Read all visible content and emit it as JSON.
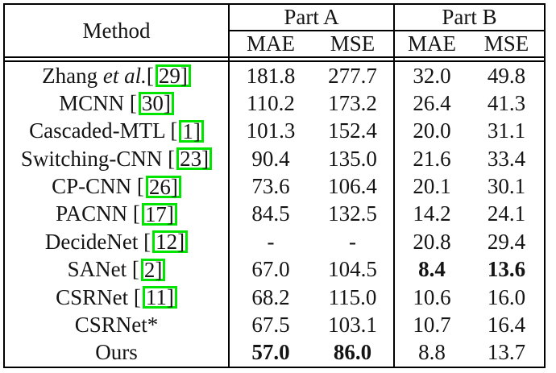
{
  "colors": {
    "background": "#ffffff",
    "text": "#141414",
    "border": "#000000",
    "citation_box": "#00e400"
  },
  "table": {
    "method_label": "Method",
    "groups": [
      {
        "label": "Part A"
      },
      {
        "label": "Part B"
      }
    ],
    "metrics": [
      "MAE",
      "MSE",
      "MAE",
      "MSE"
    ],
    "cite_open": "[",
    "cite_close": "]",
    "rows": [
      {
        "method": {
          "name": "Zhang",
          "etal": "et al.",
          "cite": "29"
        },
        "values": [
          "181.8",
          "277.7",
          "32.0",
          "49.8"
        ],
        "bold": [
          0,
          0,
          0,
          0
        ]
      },
      {
        "method": {
          "name": "MCNN",
          "cite": "30"
        },
        "values": [
          "110.2",
          "173.2",
          "26.4",
          "41.3"
        ],
        "bold": [
          0,
          0,
          0,
          0
        ]
      },
      {
        "method": {
          "name": "Cascaded-MTL",
          "cite": "1"
        },
        "values": [
          "101.3",
          "152.4",
          "20.0",
          "31.1"
        ],
        "bold": [
          0,
          0,
          0,
          0
        ]
      },
      {
        "method": {
          "name": "Switching-CNN",
          "cite": "23"
        },
        "values": [
          "90.4",
          "135.0",
          "21.6",
          "33.4"
        ],
        "bold": [
          0,
          0,
          0,
          0
        ]
      },
      {
        "method": {
          "name": "CP-CNN",
          "cite": "26"
        },
        "values": [
          "73.6",
          "106.4",
          "20.1",
          "30.1"
        ],
        "bold": [
          0,
          0,
          0,
          0
        ]
      },
      {
        "method": {
          "name": "PACNN",
          "cite": "17"
        },
        "values": [
          "84.5",
          "132.5",
          "14.2",
          "24.1"
        ],
        "bold": [
          0,
          0,
          0,
          0
        ]
      },
      {
        "method": {
          "name": "DecideNet",
          "cite": "12"
        },
        "values": [
          "-",
          "-",
          "20.8",
          "29.4"
        ],
        "bold": [
          0,
          0,
          0,
          0
        ]
      },
      {
        "method": {
          "name": "SANet",
          "cite": "2"
        },
        "values": [
          "67.0",
          "104.5",
          "8.4",
          "13.6"
        ],
        "bold": [
          0,
          0,
          1,
          1
        ]
      },
      {
        "method": {
          "name": "CSRNet",
          "cite": "11"
        },
        "values": [
          "68.2",
          "115.0",
          "10.6",
          "16.0"
        ],
        "bold": [
          0,
          0,
          0,
          0
        ]
      },
      {
        "method": {
          "name": "CSRNet*"
        },
        "values": [
          "67.5",
          "103.1",
          "10.7",
          "16.4"
        ],
        "bold": [
          0,
          0,
          0,
          0
        ]
      },
      {
        "method": {
          "name": "Ours"
        },
        "values": [
          "57.0",
          "86.0",
          "8.8",
          "13.7"
        ],
        "bold": [
          1,
          1,
          0,
          0
        ]
      }
    ]
  }
}
